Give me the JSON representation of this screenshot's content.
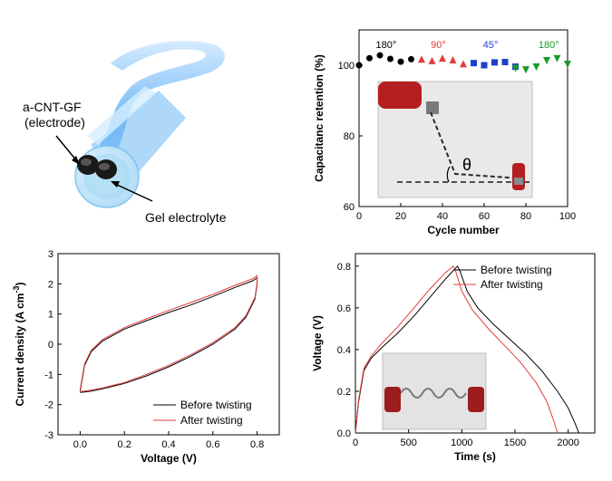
{
  "illustration": {
    "electrode_label_line1": "a-CNT-GF",
    "electrode_label_line2": "(electrode)",
    "electrolyte_label": "Gel electrolyte"
  },
  "chart_data": [
    {
      "id": "retention",
      "type": "scatter",
      "xlabel": "Cycle number",
      "ylabel": "Capacitanc retention (%)",
      "xlim": [
        0,
        100
      ],
      "ylim": [
        60,
        110
      ],
      "xticks": [
        0,
        20,
        40,
        60,
        80,
        100
      ],
      "yticks": [
        60,
        80,
        100
      ],
      "grid": false,
      "annotations": [
        {
          "text": "180°",
          "x": 13,
          "color": "#000000"
        },
        {
          "text": "90°",
          "x": 38,
          "color": "#e53b3b"
        },
        {
          "text": "45°",
          "x": 63,
          "color": "#1f3fd0"
        },
        {
          "text": "180°",
          "x": 91,
          "color": "#1a9a2a"
        }
      ],
      "inset_label": "θ",
      "series": [
        {
          "marker": "circle",
          "color": "#000000",
          "x": [
            0,
            5,
            10,
            15,
            20,
            25
          ],
          "y": [
            100.0,
            102.0,
            102.8,
            101.8,
            101.0,
            101.7
          ]
        },
        {
          "marker": "triangle-up",
          "color": "#e53b3b",
          "x": [
            30,
            35,
            40,
            45,
            50
          ],
          "y": [
            101.6,
            101.2,
            101.9,
            101.4,
            100.3
          ]
        },
        {
          "marker": "square",
          "color": "#1f3fd0",
          "x": [
            55,
            60,
            65,
            70,
            75
          ],
          "y": [
            100.6,
            100.0,
            100.8,
            100.9,
            99.6
          ]
        },
        {
          "marker": "triangle-down",
          "color": "#1a9a2a",
          "x": [
            75,
            80,
            85,
            90,
            95,
            100
          ],
          "y": [
            99.2,
            98.8,
            99.6,
            101.4,
            102.0,
            100.4
          ]
        }
      ]
    },
    {
      "id": "cv",
      "type": "line",
      "xlabel": "Voltage (V)",
      "ylabel_main": "Current density (A cm",
      "ylabel_sup": "-3",
      "ylabel_end": ")",
      "xlim": [
        -0.1,
        0.9
      ],
      "ylim": [
        -3,
        3
      ],
      "xticks": [
        0.0,
        0.2,
        0.4,
        0.6,
        0.8
      ],
      "xticklabels": [
        "0.0",
        "0.2",
        "0.4",
        "0.6",
        "0.8"
      ],
      "yticks": [
        -3,
        -2,
        -1,
        0,
        1,
        2,
        3
      ],
      "legend_position": "bottom-right",
      "series": [
        {
          "name": "Before twisting",
          "color": "#000000",
          "x": [
            0.0,
            0.02,
            0.05,
            0.1,
            0.2,
            0.3,
            0.4,
            0.5,
            0.6,
            0.7,
            0.78,
            0.8,
            0.8,
            0.79,
            0.75,
            0.7,
            0.6,
            0.5,
            0.4,
            0.3,
            0.2,
            0.1,
            0.05,
            0.02,
            0.0
          ],
          "y": [
            -1.55,
            -0.7,
            -0.25,
            0.1,
            0.5,
            0.78,
            1.05,
            1.3,
            1.58,
            1.88,
            2.1,
            2.2,
            2.0,
            1.5,
            0.9,
            0.5,
            0.0,
            -0.4,
            -0.75,
            -1.05,
            -1.3,
            -1.48,
            -1.55,
            -1.58,
            -1.6
          ]
        },
        {
          "name": "After twisting",
          "color": "#e53b3b",
          "x": [
            0.0,
            0.02,
            0.05,
            0.1,
            0.2,
            0.3,
            0.4,
            0.5,
            0.6,
            0.7,
            0.78,
            0.8,
            0.8,
            0.79,
            0.75,
            0.7,
            0.6,
            0.5,
            0.4,
            0.3,
            0.2,
            0.1,
            0.05,
            0.02,
            0.0
          ],
          "y": [
            -1.5,
            -0.65,
            -0.2,
            0.15,
            0.55,
            0.84,
            1.12,
            1.38,
            1.65,
            1.95,
            2.17,
            2.27,
            2.05,
            1.55,
            0.95,
            0.55,
            0.05,
            -0.35,
            -0.7,
            -1.0,
            -1.27,
            -1.45,
            -1.52,
            -1.55,
            -1.57
          ]
        }
      ]
    },
    {
      "id": "gcd",
      "type": "line",
      "xlabel": "Time (s)",
      "ylabel": "Voltage (V)",
      "xlim": [
        0,
        2250
      ],
      "ylim": [
        0,
        0.86
      ],
      "xticks": [
        0,
        500,
        1000,
        1500,
        2000
      ],
      "yticks": [
        0.0,
        0.2,
        0.4,
        0.6,
        0.8
      ],
      "yticklabels": [
        "0.0",
        "0.2",
        "0.4",
        "0.6",
        "0.8"
      ],
      "legend_position": "top-right",
      "series": [
        {
          "name": "Before twisting",
          "color": "#000000",
          "x": [
            0,
            30,
            80,
            150,
            250,
            400,
            550,
            700,
            850,
            960,
            980,
            1050,
            1150,
            1300,
            1450,
            1600,
            1750,
            1900,
            2000,
            2070,
            2100
          ],
          "y": [
            0.0,
            0.15,
            0.3,
            0.36,
            0.41,
            0.48,
            0.56,
            0.65,
            0.74,
            0.8,
            0.78,
            0.68,
            0.6,
            0.52,
            0.45,
            0.38,
            0.3,
            0.2,
            0.12,
            0.04,
            0.0
          ]
        },
        {
          "name": "After twisting",
          "color": "#e53b3b",
          "x": [
            0,
            30,
            80,
            150,
            250,
            400,
            550,
            700,
            850,
            920,
            940,
            1000,
            1100,
            1250,
            1400,
            1550,
            1700,
            1800,
            1870,
            1900
          ],
          "y": [
            0.0,
            0.16,
            0.31,
            0.37,
            0.43,
            0.51,
            0.6,
            0.69,
            0.77,
            0.8,
            0.78,
            0.68,
            0.59,
            0.5,
            0.42,
            0.34,
            0.24,
            0.15,
            0.05,
            0.0
          ]
        }
      ]
    }
  ]
}
